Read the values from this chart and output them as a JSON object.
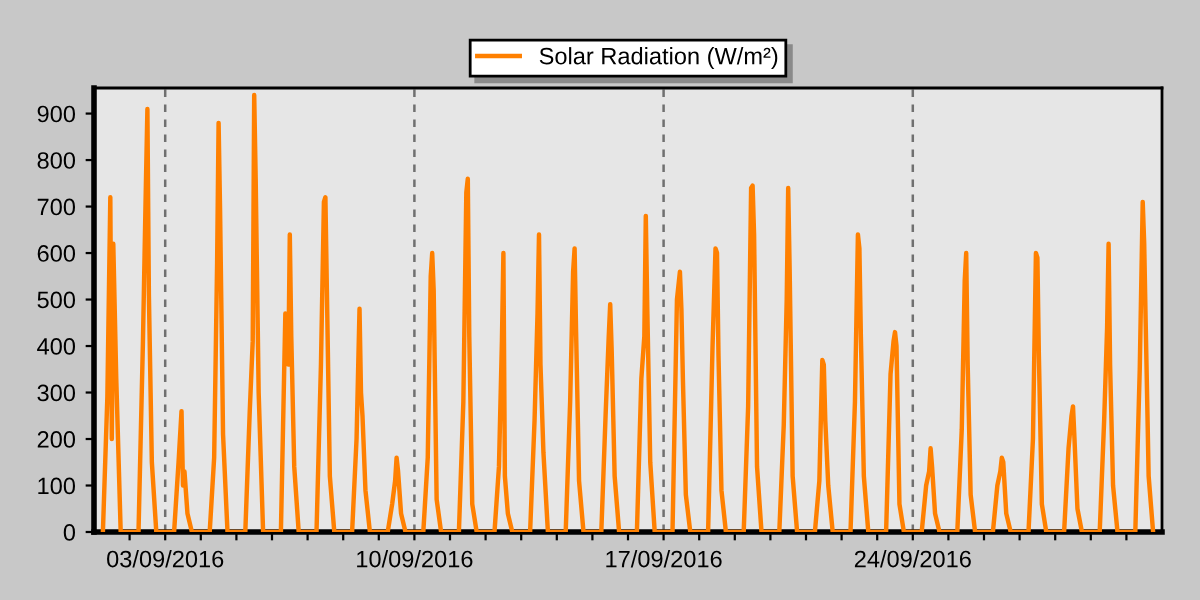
{
  "chart_data": {
    "type": "line",
    "xlim": [
      "2016-09-01T00:00",
      "2016-10-01T00:00"
    ],
    "ylim": [
      0,
      955
    ],
    "yticks": [
      0,
      100,
      200,
      300,
      400,
      500,
      600,
      700,
      800,
      900
    ],
    "xticks": [
      {
        "value": "2016-09-02",
        "label": null
      },
      {
        "value": "2016-09-03",
        "label": "03/09/2016"
      },
      {
        "value": "2016-09-04",
        "label": null
      },
      {
        "value": "2016-09-05",
        "label": null
      },
      {
        "value": "2016-09-06",
        "label": null
      },
      {
        "value": "2016-09-07",
        "label": null
      },
      {
        "value": "2016-09-08",
        "label": null
      },
      {
        "value": "2016-09-09",
        "label": null
      },
      {
        "value": "2016-09-10",
        "label": "10/09/2016"
      },
      {
        "value": "2016-09-11",
        "label": null
      },
      {
        "value": "2016-09-12",
        "label": null
      },
      {
        "value": "2016-09-13",
        "label": null
      },
      {
        "value": "2016-09-14",
        "label": null
      },
      {
        "value": "2016-09-15",
        "label": null
      },
      {
        "value": "2016-09-16",
        "label": null
      },
      {
        "value": "2016-09-17",
        "label": "17/09/2016"
      },
      {
        "value": "2016-09-18",
        "label": null
      },
      {
        "value": "2016-09-19",
        "label": null
      },
      {
        "value": "2016-09-20",
        "label": null
      },
      {
        "value": "2016-09-21",
        "label": null
      },
      {
        "value": "2016-09-22",
        "label": null
      },
      {
        "value": "2016-09-23",
        "label": null
      },
      {
        "value": "2016-09-24",
        "label": "24/09/2016"
      },
      {
        "value": "2016-09-25",
        "label": null
      },
      {
        "value": "2016-09-26",
        "label": null
      },
      {
        "value": "2016-09-27",
        "label": null
      },
      {
        "value": "2016-09-28",
        "label": null
      },
      {
        "value": "2016-09-29",
        "label": null
      },
      {
        "value": "2016-09-30",
        "label": null
      }
    ],
    "grid": "x",
    "legend": "top",
    "marker": "none",
    "line_style": "solid",
    "series": [
      {
        "name": "Solar Radiation (W/m²)",
        "color": "#ff8000",
        "x": [
          "2016-09-01T06:00",
          "2016-09-01T09:00",
          "2016-09-01T11:00",
          "2016-09-01T12:00",
          "2016-09-01T13:00",
          "2016-09-01T15:00",
          "2016-09-01T18:00",
          "2016-09-02T06:00",
          "2016-09-02T09:00",
          "2016-09-02T11:00",
          "2016-09-02T12:00",
          "2016-09-02T13:00",
          "2016-09-02T15:00",
          "2016-09-02T18:00",
          "2016-09-03T06:00",
          "2016-09-03T09:00",
          "2016-09-03T11:00",
          "2016-09-03T12:00",
          "2016-09-03T13:00",
          "2016-09-03T15:00",
          "2016-09-03T18:00",
          "2016-09-04T06:00",
          "2016-09-04T09:00",
          "2016-09-04T11:00",
          "2016-09-04T12:00",
          "2016-09-04T13:00",
          "2016-09-04T15:00",
          "2016-09-04T18:00",
          "2016-09-05T06:00",
          "2016-09-05T09:00",
          "2016-09-05T11:00",
          "2016-09-05T12:00",
          "2016-09-05T13:00",
          "2016-09-05T15:00",
          "2016-09-05T18:00",
          "2016-09-06T06:00",
          "2016-09-06T09:00",
          "2016-09-06T11:00",
          "2016-09-06T12:00",
          "2016-09-06T13:00",
          "2016-09-06T15:00",
          "2016-09-06T18:00",
          "2016-09-07T06:00",
          "2016-09-07T09:00",
          "2016-09-07T11:00",
          "2016-09-07T12:00",
          "2016-09-07T13:00",
          "2016-09-07T15:00",
          "2016-09-07T18:00",
          "2016-09-08T06:00",
          "2016-09-08T09:00",
          "2016-09-08T11:00",
          "2016-09-08T12:00",
          "2016-09-08T13:00",
          "2016-09-08T15:00",
          "2016-09-08T18:00",
          "2016-09-09T06:00",
          "2016-09-09T09:00",
          "2016-09-09T11:00",
          "2016-09-09T12:00",
          "2016-09-09T13:00",
          "2016-09-09T15:00",
          "2016-09-09T18:00",
          "2016-09-10T06:00",
          "2016-09-10T09:00",
          "2016-09-10T11:00",
          "2016-09-10T12:00",
          "2016-09-10T13:00",
          "2016-09-10T15:00",
          "2016-09-10T18:00",
          "2016-09-11T06:00",
          "2016-09-11T09:00",
          "2016-09-11T11:00",
          "2016-09-11T12:00",
          "2016-09-11T13:00",
          "2016-09-11T15:00",
          "2016-09-11T18:00",
          "2016-09-12T06:00",
          "2016-09-12T09:00",
          "2016-09-12T11:00",
          "2016-09-12T12:00",
          "2016-09-12T13:00",
          "2016-09-12T15:00",
          "2016-09-12T18:00",
          "2016-09-13T06:00",
          "2016-09-13T09:00",
          "2016-09-13T11:00",
          "2016-09-13T12:00",
          "2016-09-13T13:00",
          "2016-09-13T15:00",
          "2016-09-13T18:00",
          "2016-09-14T06:00",
          "2016-09-14T09:00",
          "2016-09-14T11:00",
          "2016-09-14T12:00",
          "2016-09-14T13:00",
          "2016-09-14T15:00",
          "2016-09-14T18:00",
          "2016-09-15T06:00",
          "2016-09-15T09:00",
          "2016-09-15T11:00",
          "2016-09-15T12:00",
          "2016-09-15T13:00",
          "2016-09-15T15:00",
          "2016-09-15T18:00",
          "2016-09-16T06:00",
          "2016-09-16T09:00",
          "2016-09-16T11:00",
          "2016-09-16T12:00",
          "2016-09-16T13:00",
          "2016-09-16T15:00",
          "2016-09-16T18:00",
          "2016-09-17T06:00",
          "2016-09-17T09:00",
          "2016-09-17T11:00",
          "2016-09-17T12:00",
          "2016-09-17T13:00",
          "2016-09-17T15:00",
          "2016-09-17T18:00",
          "2016-09-18T06:00",
          "2016-09-18T09:00",
          "2016-09-18T11:00",
          "2016-09-18T12:00",
          "2016-09-18T13:00",
          "2016-09-18T15:00",
          "2016-09-18T18:00",
          "2016-09-19T06:00",
          "2016-09-19T09:00",
          "2016-09-19T11:00",
          "2016-09-19T12:00",
          "2016-09-19T13:00",
          "2016-09-19T15:00",
          "2016-09-19T18:00",
          "2016-09-20T06:00",
          "2016-09-20T09:00",
          "2016-09-20T11:00",
          "2016-09-20T12:00",
          "2016-09-20T13:00",
          "2016-09-20T15:00",
          "2016-09-20T18:00",
          "2016-09-21T06:00",
          "2016-09-21T09:00",
          "2016-09-21T11:00",
          "2016-09-21T12:00",
          "2016-09-21T13:00",
          "2016-09-21T15:00",
          "2016-09-21T18:00",
          "2016-09-22T06:00",
          "2016-09-22T09:00",
          "2016-09-22T11:00",
          "2016-09-22T12:00",
          "2016-09-22T13:00",
          "2016-09-22T15:00",
          "2016-09-22T18:00",
          "2016-09-23T06:00",
          "2016-09-23T09:00",
          "2016-09-23T11:00",
          "2016-09-23T12:00",
          "2016-09-23T13:00",
          "2016-09-23T15:00",
          "2016-09-23T18:00",
          "2016-09-24T06:00",
          "2016-09-24T09:00",
          "2016-09-24T11:00",
          "2016-09-24T12:00",
          "2016-09-24T13:00",
          "2016-09-24T15:00",
          "2016-09-24T18:00",
          "2016-09-25T06:00",
          "2016-09-25T09:00",
          "2016-09-25T11:00",
          "2016-09-25T12:00",
          "2016-09-25T13:00",
          "2016-09-25T15:00",
          "2016-09-25T18:00",
          "2016-09-26T06:00",
          "2016-09-26T09:00",
          "2016-09-26T11:00",
          "2016-09-26T12:00",
          "2016-09-26T13:00",
          "2016-09-26T15:00",
          "2016-09-26T18:00",
          "2016-09-27T06:00",
          "2016-09-27T09:00",
          "2016-09-27T11:00",
          "2016-09-27T12:00",
          "2016-09-27T13:00",
          "2016-09-27T15:00",
          "2016-09-27T18:00",
          "2016-09-28T06:00",
          "2016-09-28T09:00",
          "2016-09-28T11:00",
          "2016-09-28T12:00",
          "2016-09-28T13:00",
          "2016-09-28T15:00",
          "2016-09-28T18:00",
          "2016-09-29T06:00",
          "2016-09-29T09:00",
          "2016-09-29T11:00",
          "2016-09-29T12:00",
          "2016-09-29T13:00",
          "2016-09-29T15:00",
          "2016-09-29T18:00",
          "2016-09-30T06:00",
          "2016-09-30T09:00",
          "2016-09-30T11:00",
          "2016-09-30T12:00",
          "2016-09-30T13:00",
          "2016-09-30T15:00",
          "2016-09-30T18:00"
        ],
        "values": [
          0,
          290,
          720,
          200,
          620,
          330,
          0,
          0,
          410,
          750,
          910,
          510,
          150,
          0,
          0,
          150,
          260,
          100,
          130,
          40,
          0,
          0,
          160,
          580,
          880,
          690,
          210,
          0,
          0,
          260,
          410,
          940,
          760,
          300,
          0,
          0,
          470,
          360,
          640,
          420,
          140,
          0,
          0,
          360,
          710,
          720,
          520,
          120,
          0,
          0,
          200,
          480,
          300,
          250,
          90,
          0,
          0,
          60,
          110,
          160,
          130,
          40,
          0,
          0,
          160,
          550,
          600,
          520,
          70,
          0,
          0,
          280,
          730,
          760,
          420,
          60,
          0,
          0,
          140,
          410,
          600,
          120,
          40,
          0,
          0,
          240,
          470,
          640,
          360,
          170,
          0,
          0,
          280,
          560,
          610,
          430,
          110,
          0,
          0,
          260,
          420,
          490,
          390,
          120,
          0,
          0,
          330,
          420,
          680,
          480,
          150,
          0,
          0,
          500,
          560,
          480,
          330,
          80,
          0,
          0,
          400,
          610,
          600,
          380,
          90,
          0,
          0,
          270,
          740,
          745,
          640,
          140,
          0,
          0,
          230,
          500,
          740,
          560,
          120,
          0,
          0,
          110,
          370,
          360,
          240,
          100,
          0,
          0,
          280,
          640,
          610,
          420,
          120,
          0,
          0,
          340,
          410,
          430,
          400,
          60,
          0,
          0,
          100,
          130,
          180,
          140,
          40,
          0,
          0,
          220,
          540,
          600,
          360,
          80,
          0,
          0,
          100,
          130,
          160,
          150,
          40,
          0,
          0,
          200,
          600,
          590,
          380,
          60,
          0,
          0,
          180,
          250,
          270,
          200,
          50,
          0,
          0,
          240,
          440,
          620,
          360,
          100,
          0,
          0,
          350,
          710,
          620,
          450,
          120,
          0
        ]
      }
    ]
  }
}
